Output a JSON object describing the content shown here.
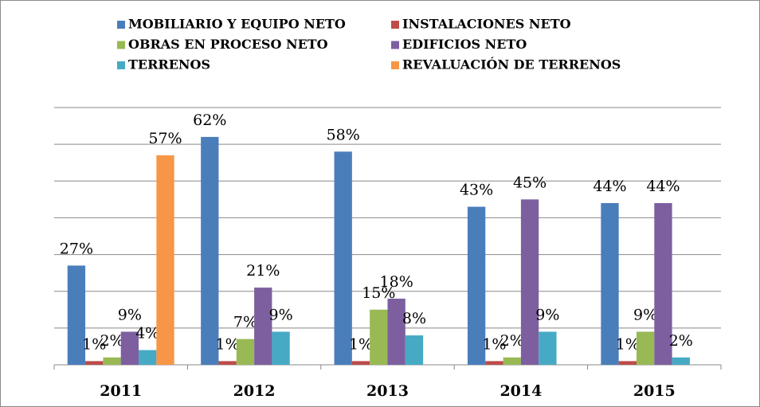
{
  "chart_data": {
    "type": "bar",
    "categories": [
      "2011",
      "2012",
      "2013",
      "2014",
      "2015"
    ],
    "series": [
      {
        "name": "MOBILIARIO Y EQUIPO NETO",
        "color": "#4a7ebb",
        "values": [
          27,
          62,
          58,
          43,
          44
        ],
        "value_labels": [
          "27%",
          "62%",
          "58%",
          "43%",
          "44%"
        ]
      },
      {
        "name": "INSTALACIONES NETO",
        "color": "#be4b48",
        "values": [
          1,
          1,
          1,
          1,
          1
        ],
        "value_labels": [
          "1%",
          "1%",
          "1%",
          "1%",
          "1%"
        ]
      },
      {
        "name": "OBRAS EN PROCESO NETO",
        "color": "#98b954",
        "values": [
          2,
          7,
          15,
          2,
          9
        ],
        "value_labels": [
          "2%",
          "7%",
          "15%",
          "2%",
          "9%"
        ]
      },
      {
        "name": "EDIFICIOS NETO",
        "color": "#7d5fa0",
        "values": [
          9,
          21,
          18,
          45,
          44
        ],
        "value_labels": [
          "9%",
          "21%",
          "18%",
          "45%",
          "44%"
        ]
      },
      {
        "name": "TERRENOS",
        "color": "#46aac5",
        "values": [
          4,
          9,
          8,
          9,
          2
        ],
        "value_labels": [
          "4%",
          "9%",
          "8%",
          "9%",
          "2%"
        ]
      },
      {
        "name": "REVALUACIÓN DE TERRENOS",
        "color": "#f79646",
        "values": [
          57,
          null,
          null,
          null,
          null
        ],
        "value_labels": [
          "57%",
          null,
          null,
          null,
          null
        ]
      }
    ],
    "ylim": [
      0,
      70
    ],
    "yticks": [
      0,
      10,
      20,
      30,
      40,
      50,
      60,
      70
    ],
    "grid": true,
    "legend": "top"
  }
}
